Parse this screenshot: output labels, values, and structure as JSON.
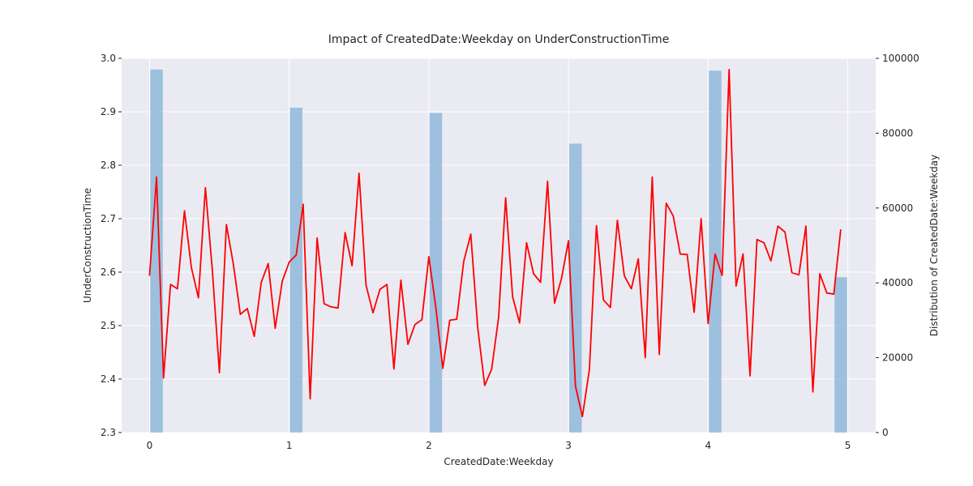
{
  "chart_data": {
    "type": "line",
    "title": "Impact of CreatedDate:Weekday on UnderConstructionTime",
    "xlabel": "CreatedDate:Weekday",
    "ylabel": "UnderConstructionTime",
    "y2label": "Distribution of CreatedDate:Weekday",
    "xlim": [
      -0.2,
      5.2
    ],
    "ylim": [
      2.3,
      3.0
    ],
    "y2lim": [
      0,
      100000
    ],
    "x_ticks": [
      "0",
      "1",
      "2",
      "3",
      "4",
      "5"
    ],
    "y_ticks": [
      "2.3",
      "2.4",
      "2.5",
      "2.6",
      "2.7",
      "2.8",
      "2.9",
      "3.0"
    ],
    "y2_ticks": [
      "0",
      "20000",
      "40000",
      "60000",
      "80000",
      "100000"
    ],
    "grid": true,
    "bar_width": 0.09,
    "histogram": {
      "color": "#8fb8dc",
      "bins": [
        {
          "x": 0.05,
          "count": 97000
        },
        {
          "x": 1.05,
          "count": 86800
        },
        {
          "x": 2.05,
          "count": 85400
        },
        {
          "x": 3.05,
          "count": 77200
        },
        {
          "x": 4.05,
          "count": 96700
        },
        {
          "x": 4.95,
          "count": 41500
        }
      ]
    },
    "series": [
      {
        "color": "#ff0000",
        "x": [
          0.0,
          0.05,
          0.1,
          0.15,
          0.2,
          0.25,
          0.3,
          0.35,
          0.4,
          0.45,
          0.5,
          0.55,
          0.6,
          0.65,
          0.7,
          0.75,
          0.8,
          0.85,
          0.9,
          0.95,
          1.0,
          1.05,
          1.1,
          1.15,
          1.2,
          1.25,
          1.3,
          1.35,
          1.4,
          1.45,
          1.5,
          1.55,
          1.6,
          1.65,
          1.7,
          1.75,
          1.8,
          1.85,
          1.9,
          1.95,
          2.0,
          2.05,
          2.1,
          2.15,
          2.2,
          2.25,
          2.3,
          2.35,
          2.4,
          2.45,
          2.5,
          2.55,
          2.6,
          2.65,
          2.7,
          2.75,
          2.8,
          2.85,
          2.9,
          2.95,
          3.0,
          3.05,
          3.1,
          3.15,
          3.2,
          3.25,
          3.3,
          3.35,
          3.4,
          3.45,
          3.5,
          3.55,
          3.6,
          3.65,
          3.7,
          3.75,
          3.8,
          3.85,
          3.9,
          3.95,
          4.0,
          4.05,
          4.1,
          4.15,
          4.2,
          4.25,
          4.3,
          4.35,
          4.4,
          4.45,
          4.5,
          4.55,
          4.6,
          4.65,
          4.7,
          4.75,
          4.8,
          4.85,
          4.9,
          4.95
        ],
        "y": [
          2.593,
          2.778,
          2.402,
          2.577,
          2.569,
          2.715,
          2.608,
          2.552,
          2.758,
          2.603,
          2.412,
          2.689,
          2.615,
          2.521,
          2.532,
          2.48,
          2.581,
          2.616,
          2.495,
          2.583,
          2.619,
          2.632,
          2.727,
          2.363,
          2.664,
          2.541,
          2.535,
          2.533,
          2.674,
          2.612,
          2.785,
          2.576,
          2.524,
          2.568,
          2.577,
          2.419,
          2.585,
          2.465,
          2.502,
          2.511,
          2.629,
          2.534,
          2.42,
          2.51,
          2.512,
          2.62,
          2.671,
          2.496,
          2.388,
          2.419,
          2.516,
          2.739,
          2.554,
          2.505,
          2.655,
          2.597,
          2.581,
          2.77,
          2.542,
          2.588,
          2.659,
          2.387,
          2.33,
          2.418,
          2.687,
          2.548,
          2.534,
          2.697,
          2.593,
          2.569,
          2.625,
          2.44,
          2.778,
          2.446,
          2.729,
          2.705,
          2.634,
          2.633,
          2.525,
          2.7,
          2.504,
          2.634,
          2.594,
          2.979,
          2.574,
          2.634,
          2.406,
          2.661,
          2.655,
          2.621,
          2.686,
          2.675,
          2.599,
          2.595,
          2.686,
          2.376,
          2.597,
          2.561,
          2.559,
          2.68
        ]
      }
    ]
  }
}
